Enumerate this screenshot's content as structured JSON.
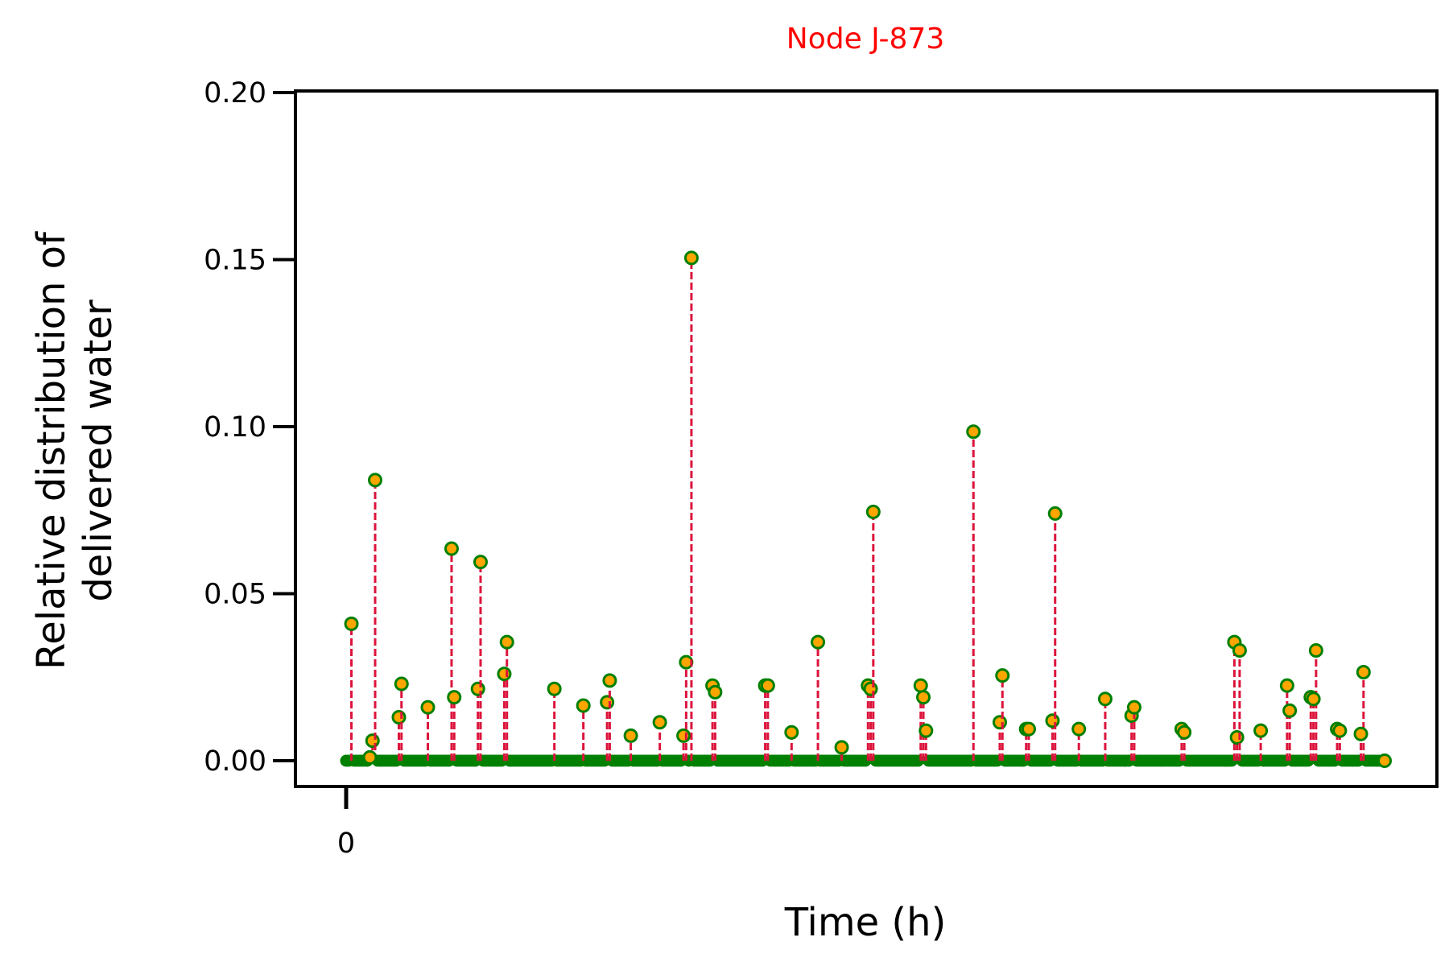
{
  "chart_data": {
    "type": "stem",
    "title": "Node J-873",
    "xlabel": "Time (h)",
    "ylabel_lines": [
      "Relative distribution of",
      "delivered water"
    ],
    "ylim": [
      0,
      0.2
    ],
    "yticks": [
      "0.00",
      "0.05",
      "0.10",
      "0.15",
      "0.20"
    ],
    "ytick_values": [
      0,
      0.05,
      0.1,
      0.15,
      0.2
    ],
    "xticks": [
      "0"
    ],
    "xtick_values": [
      0
    ],
    "xlim": [
      -20,
      414
    ],
    "x_last": 394,
    "grid": false,
    "colors": {
      "title": "#ff0000",
      "stem": "#dc143c",
      "marker_face": "#ffa500",
      "marker_edge": "#008000",
      "baseline_marker": "#008000",
      "axes": "#000000"
    },
    "series": [
      {
        "points": [
          [
            2,
            0.041
          ],
          [
            10,
            0.006
          ],
          [
            11,
            0.084
          ],
          [
            9,
            0.001
          ],
          [
            20,
            0.013
          ],
          [
            21,
            0.023
          ],
          [
            31,
            0.016
          ],
          [
            40,
            0.0635
          ],
          [
            41,
            0.019
          ],
          [
            50,
            0.0215
          ],
          [
            51,
            0.0595
          ],
          [
            60,
            0.026
          ],
          [
            61,
            0.0355
          ],
          [
            79,
            0.0215
          ],
          [
            90,
            0.0165
          ],
          [
            99,
            0.0175
          ],
          [
            100,
            0.024
          ],
          [
            108,
            0.0075
          ],
          [
            119,
            0.0115
          ],
          [
            128,
            0.0075
          ],
          [
            129,
            0.0295
          ],
          [
            131,
            0.1505
          ],
          [
            139,
            0.0225
          ],
          [
            140,
            0.0205
          ],
          [
            159,
            0.0225
          ],
          [
            160,
            0.0225
          ],
          [
            169,
            0.0085
          ],
          [
            179,
            0.0355
          ],
          [
            188,
            0.004
          ],
          [
            198,
            0.0225
          ],
          [
            199,
            0.0215
          ],
          [
            200,
            0.0745
          ],
          [
            218,
            0.0225
          ],
          [
            219,
            0.019
          ],
          [
            220,
            0.009
          ],
          [
            238,
            0.0985
          ],
          [
            248,
            0.0115
          ],
          [
            249,
            0.0255
          ],
          [
            258,
            0.0095
          ],
          [
            259,
            0.0095
          ],
          [
            268,
            0.012
          ],
          [
            269,
            0.074
          ],
          [
            278,
            0.0095
          ],
          [
            288,
            0.0185
          ],
          [
            298,
            0.0135
          ],
          [
            299,
            0.016
          ],
          [
            317,
            0.0095
          ],
          [
            318,
            0.0085
          ],
          [
            337,
            0.0355
          ],
          [
            338,
            0.007
          ],
          [
            339,
            0.033
          ],
          [
            347,
            0.009
          ],
          [
            357,
            0.0225
          ],
          [
            358,
            0.015
          ],
          [
            366,
            0.019
          ],
          [
            368,
            0.033
          ],
          [
            367,
            0.0185
          ],
          [
            376,
            0.0095
          ],
          [
            377,
            0.009
          ],
          [
            386,
            0.0265
          ],
          [
            385,
            0.008
          ],
          [
            394,
            0.0
          ]
        ]
      }
    ]
  }
}
